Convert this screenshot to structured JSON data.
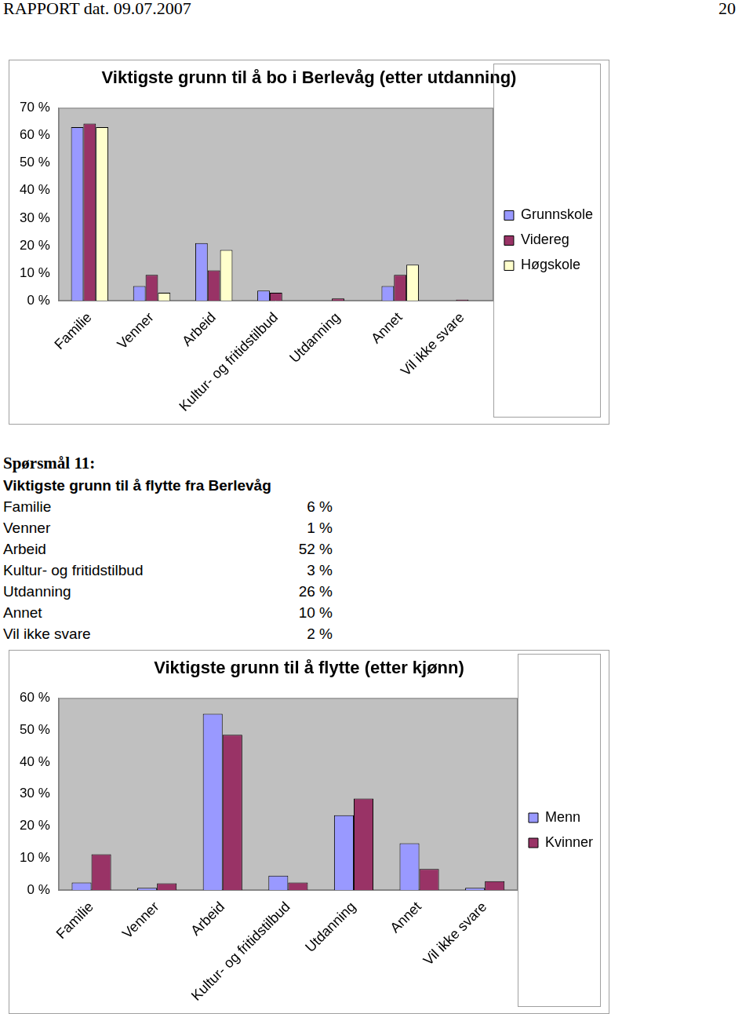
{
  "header": {
    "left": "RAPPORT dat. 09.07.2007",
    "page": "20"
  },
  "chart_data": [
    {
      "type": "bar",
      "title": "Viktigste grunn til å bo i Berlevåg (etter utdanning)",
      "categories": [
        "Familie",
        "Venner",
        "Arbeid",
        "Kultur- og fritidstilbud",
        "Utdanning",
        "Annet",
        "Vil ikke svare"
      ],
      "series": [
        {
          "name": "Grunnskole",
          "color": "#9999ff",
          "values": [
            63,
            5.3,
            20.9,
            3.7,
            0,
            5.3,
            0
          ]
        },
        {
          "name": "Videreg",
          "color": "#993366",
          "values": [
            64.3,
            9.4,
            11,
            2.9,
            0.8,
            9.4,
            0.4
          ]
        },
        {
          "name": "Høgskole",
          "color": "#ffffcc",
          "values": [
            63,
            2.9,
            18.4,
            0,
            0,
            13.1,
            0
          ]
        }
      ],
      "ylim": [
        0,
        70
      ],
      "yticks": [
        {
          "value": 0,
          "label": "0 %"
        },
        {
          "value": 10,
          "label": "10 %"
        },
        {
          "value": 20,
          "label": "20 %"
        },
        {
          "value": 30,
          "label": "30 %"
        },
        {
          "value": 40,
          "label": "40 %"
        },
        {
          "value": 50,
          "label": "50 %"
        },
        {
          "value": 60,
          "label": "60 %"
        },
        {
          "value": 70,
          "label": "70 %"
        }
      ],
      "grid": false,
      "legend": "right"
    },
    {
      "type": "bar",
      "title": "Viktigste grunn til å flytte (etter kjønn)",
      "categories": [
        "Familie",
        "Venner",
        "Arbeid",
        "Kultur- og fritidstilbud",
        "Utdanning",
        "Annet",
        "Vil ikke svare"
      ],
      "series": [
        {
          "name": "Menn",
          "color": "#9999ff",
          "values": [
            2.4,
            0.7,
            55.1,
            4.5,
            23.4,
            14.6,
            0.7
          ]
        },
        {
          "name": "Kvinner",
          "color": "#993366",
          "values": [
            11.2,
            2.1,
            48.5,
            2.4,
            28.6,
            6.6,
            2.8
          ]
        }
      ],
      "ylim": [
        0,
        60
      ],
      "yticks": [
        {
          "value": 0,
          "label": "0 %"
        },
        {
          "value": 10,
          "label": "10 %"
        },
        {
          "value": 20,
          "label": "20 %"
        },
        {
          "value": 30,
          "label": "30 %"
        },
        {
          "value": 40,
          "label": "40 %"
        },
        {
          "value": 50,
          "label": "50 %"
        },
        {
          "value": 60,
          "label": "60 %"
        }
      ],
      "grid": false,
      "legend": "right"
    }
  ],
  "question": {
    "number": "Spørsmål 11:",
    "title": "Viktigste grunn til å flytte fra Berlevåg",
    "rows": [
      {
        "label": "Familie",
        "value": "6 %"
      },
      {
        "label": "Venner",
        "value": "1 %"
      },
      {
        "label": "Arbeid",
        "value": "52 %"
      },
      {
        "label": "Kultur- og fritidstilbud",
        "value": "3 %"
      },
      {
        "label": "Utdanning",
        "value": "26 %"
      },
      {
        "label": "Annet",
        "value": "10 %"
      },
      {
        "label": "Vil ikke svare",
        "value": "2 %"
      }
    ]
  }
}
